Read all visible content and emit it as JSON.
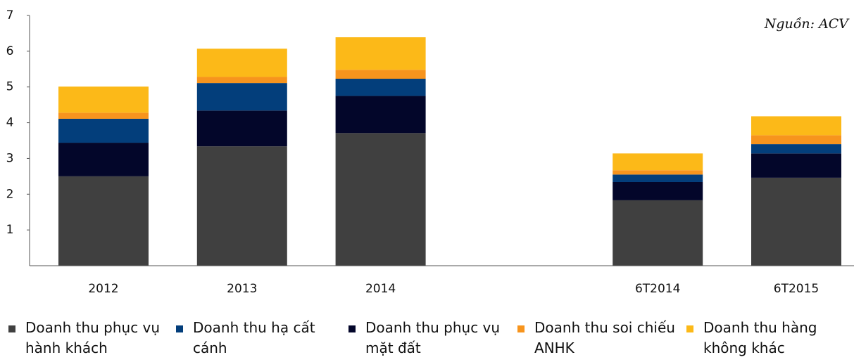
{
  "chart_data": {
    "type": "stacked_bar",
    "annotation": "Nguồn: ACV",
    "categories": [
      "2012",
      "2013",
      "2014",
      null,
      "6T2014",
      "6T2015"
    ],
    "series": [
      {
        "name": "Doanh thu phục vụ hành khách",
        "color": "#404040",
        "values": [
          2.5,
          3.34,
          3.71,
          null,
          1.83,
          2.46
        ]
      },
      {
        "name": "Doanh thu hạ cất cánh",
        "color": "#033e7b",
        "values": [
          0.67,
          0.77,
          0.48,
          null,
          0.21,
          0.26
        ]
      },
      {
        "name": "Doanh thu phục vụ mặt đất",
        "color": "#03062a",
        "values": [
          0.94,
          1.0,
          1.04,
          null,
          0.51,
          0.68
        ]
      },
      {
        "name": "Doanh thu soi chiếu ANHK",
        "color": "#f7941d",
        "values": [
          0.17,
          0.17,
          0.25,
          null,
          0.12,
          0.25
        ]
      },
      {
        "name": "Doanh thu hàng không khác",
        "color": "#fcb918",
        "values": [
          0.73,
          0.79,
          0.91,
          null,
          0.47,
          0.53
        ]
      }
    ],
    "stack_order": [
      0,
      2,
      1,
      3,
      4
    ],
    "ylim": [
      0,
      7
    ],
    "yticks": [
      1,
      2,
      3,
      4,
      5,
      6,
      7
    ],
    "grid": false
  }
}
